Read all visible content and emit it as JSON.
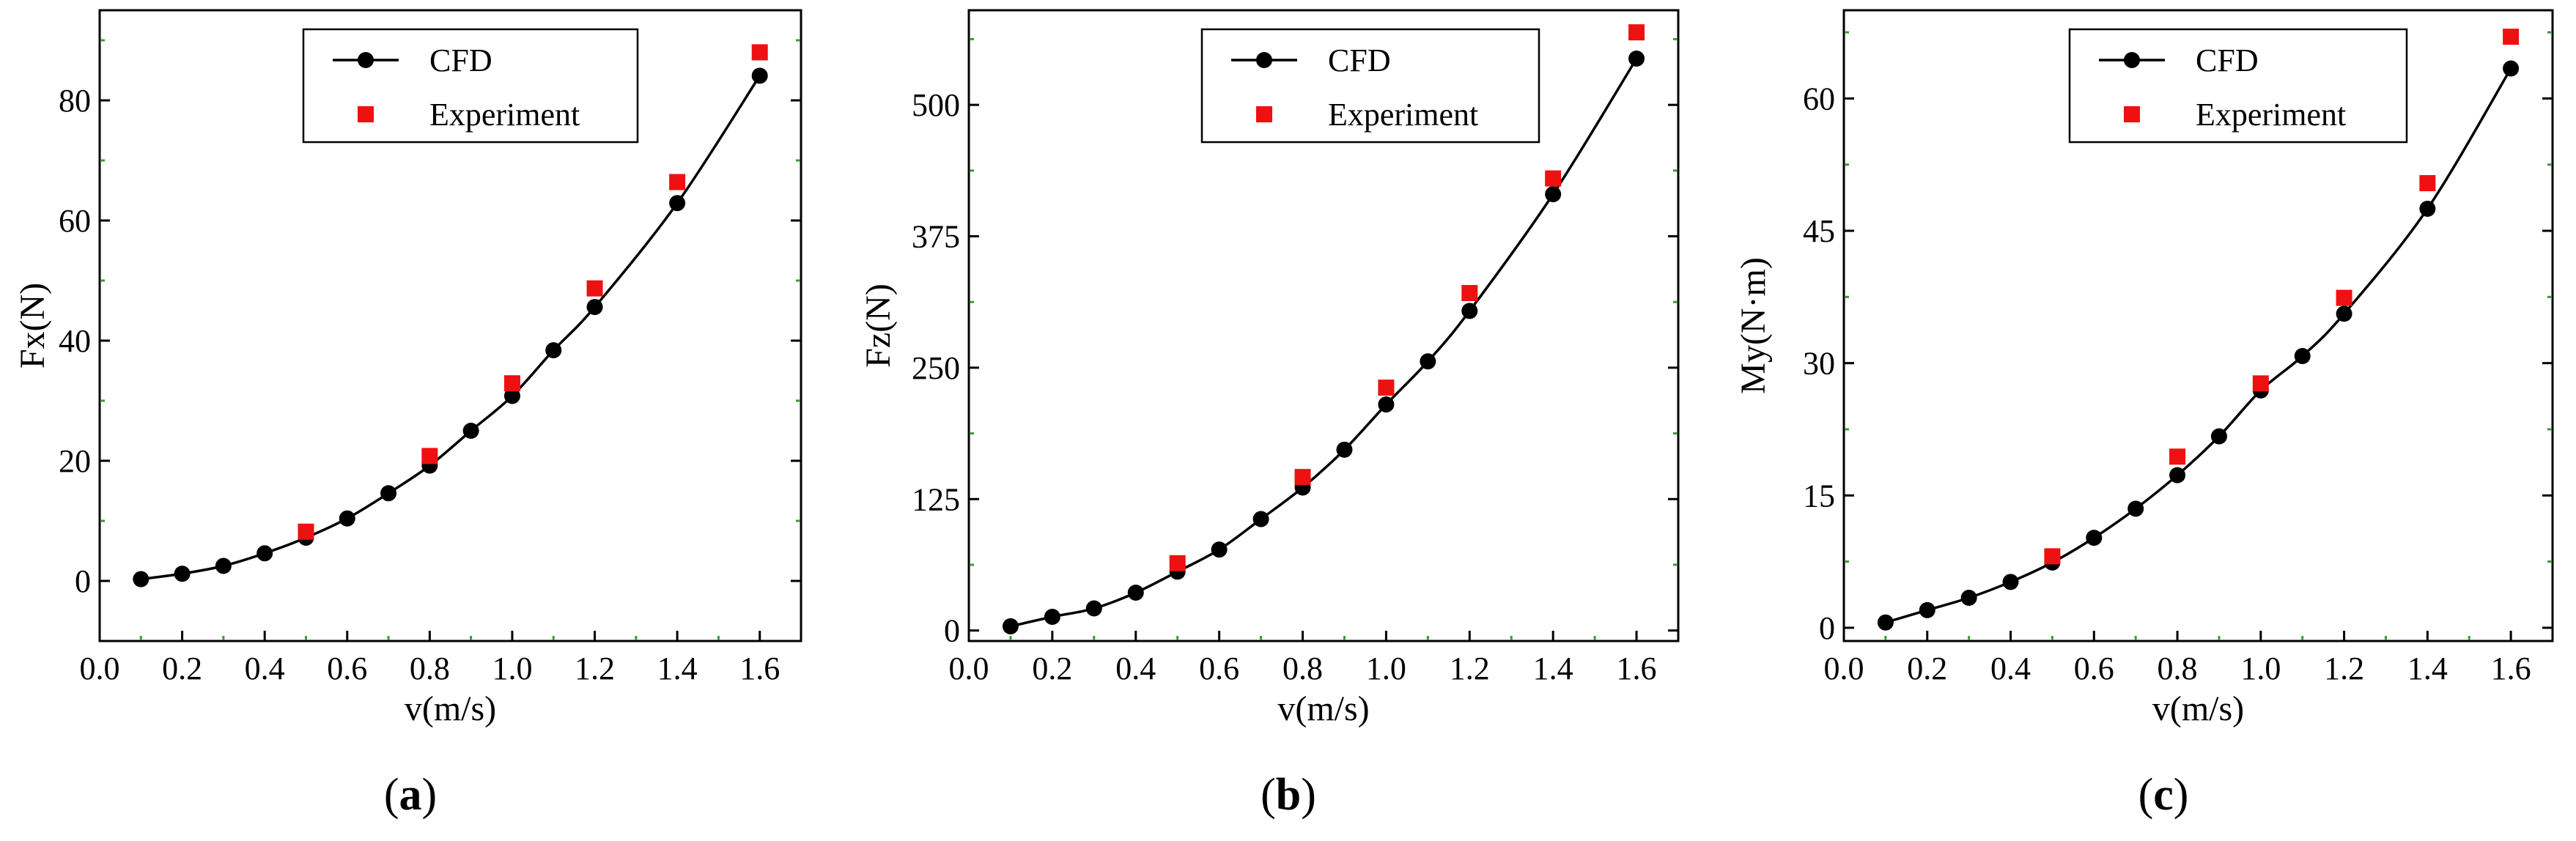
{
  "chart_data": [
    {
      "type": "line",
      "panel_label": "a",
      "xlabel": "v(m/s)",
      "ylabel": "Fx(N)",
      "xlim": [
        0.0,
        1.7
      ],
      "ylim": [
        -10,
        95
      ],
      "xticks": [
        0.0,
        0.2,
        0.4,
        0.6,
        0.8,
        1.0,
        1.2,
        1.4,
        1.6
      ],
      "xtick_labels": [
        "0.0",
        "0.2",
        "0.4",
        "0.6",
        "0.8",
        "1.0",
        "1.2",
        "1.4",
        "1.6"
      ],
      "yticks": [
        0,
        20,
        40,
        60,
        80
      ],
      "ytick_labels": [
        "0",
        "20",
        "40",
        "60",
        "80"
      ],
      "legend_position": "top-center",
      "series": [
        {
          "name": "CFD",
          "style": "line-marker",
          "color": "#000000",
          "x": [
            0.1,
            0.2,
            0.3,
            0.4,
            0.5,
            0.6,
            0.7,
            0.8,
            0.9,
            1.0,
            1.1,
            1.2,
            1.4,
            1.6
          ],
          "y": [
            0.3,
            1.2,
            2.5,
            4.6,
            7.2,
            10.4,
            14.6,
            19.2,
            25.0,
            30.8,
            38.4,
            45.6,
            62.9,
            84.1
          ]
        },
        {
          "name": "Experiment",
          "style": "marker",
          "color": "#ee1111",
          "x": [
            0.5,
            0.8,
            1.0,
            1.2,
            1.4,
            1.6
          ],
          "y": [
            8.2,
            20.8,
            32.9,
            48.7,
            66.4,
            88.0
          ]
        }
      ]
    },
    {
      "type": "line",
      "panel_label": "b",
      "xlabel": "v(m/s)",
      "ylabel": "Fz(N)",
      "xlim": [
        0.0,
        1.7
      ],
      "ylim": [
        -10,
        590
      ],
      "xticks": [
        0.0,
        0.2,
        0.4,
        0.6,
        0.8,
        1.0,
        1.2,
        1.4,
        1.6
      ],
      "xtick_labels": [
        "0.0",
        "0.2",
        "0.4",
        "0.6",
        "0.8",
        "1.0",
        "1.2",
        "1.4",
        "1.6"
      ],
      "yticks": [
        0,
        125,
        250,
        375,
        500
      ],
      "ytick_labels": [
        "0",
        "125",
        "250",
        "375",
        "500"
      ],
      "legend_position": "top-center",
      "series": [
        {
          "name": "CFD",
          "style": "line-marker",
          "color": "#000000",
          "x": [
            0.1,
            0.2,
            0.3,
            0.4,
            0.5,
            0.6,
            0.7,
            0.8,
            0.9,
            1.0,
            1.1,
            1.2,
            1.4,
            1.6
          ],
          "y": [
            4,
            13,
            21,
            36,
            56,
            77,
            106,
            136,
            172,
            215,
            256,
            304,
            415,
            544
          ]
        },
        {
          "name": "Experiment",
          "style": "marker",
          "color": "#ee1111",
          "x": [
            0.5,
            0.8,
            1.0,
            1.2,
            1.4,
            1.6
          ],
          "y": [
            64,
            146,
            231,
            321,
            430,
            569
          ]
        }
      ]
    },
    {
      "type": "line",
      "panel_label": "c",
      "xlabel": "v(m/s)",
      "ylabel": "My(N·m)",
      "xlim": [
        0.0,
        1.7
      ],
      "ylim": [
        -1.5,
        70
      ],
      "xticks": [
        0.0,
        0.2,
        0.4,
        0.6,
        0.8,
        1.0,
        1.2,
        1.4,
        1.6
      ],
      "xtick_labels": [
        "0.0",
        "0.2",
        "0.4",
        "0.6",
        "0.8",
        "1.0",
        "1.2",
        "1.4",
        "1.6"
      ],
      "yticks": [
        0,
        15,
        30,
        45,
        60
      ],
      "ytick_labels": [
        "0",
        "15",
        "30",
        "45",
        "60"
      ],
      "legend_position": "top-center",
      "series": [
        {
          "name": "CFD",
          "style": "line-marker",
          "color": "#000000",
          "x": [
            0.1,
            0.2,
            0.3,
            0.4,
            0.5,
            0.6,
            0.7,
            0.8,
            0.9,
            1.0,
            1.1,
            1.2,
            1.4,
            1.6
          ],
          "y": [
            0.6,
            2.0,
            3.4,
            5.2,
            7.4,
            10.2,
            13.5,
            17.3,
            21.7,
            26.9,
            30.8,
            35.6,
            47.5,
            63.4
          ]
        },
        {
          "name": "Experiment",
          "style": "marker",
          "color": "#ee1111",
          "x": [
            0.5,
            0.8,
            1.0,
            1.2,
            1.4,
            1.6
          ],
          "y": [
            8.1,
            19.4,
            27.7,
            37.4,
            50.4,
            67.0
          ]
        }
      ]
    }
  ]
}
